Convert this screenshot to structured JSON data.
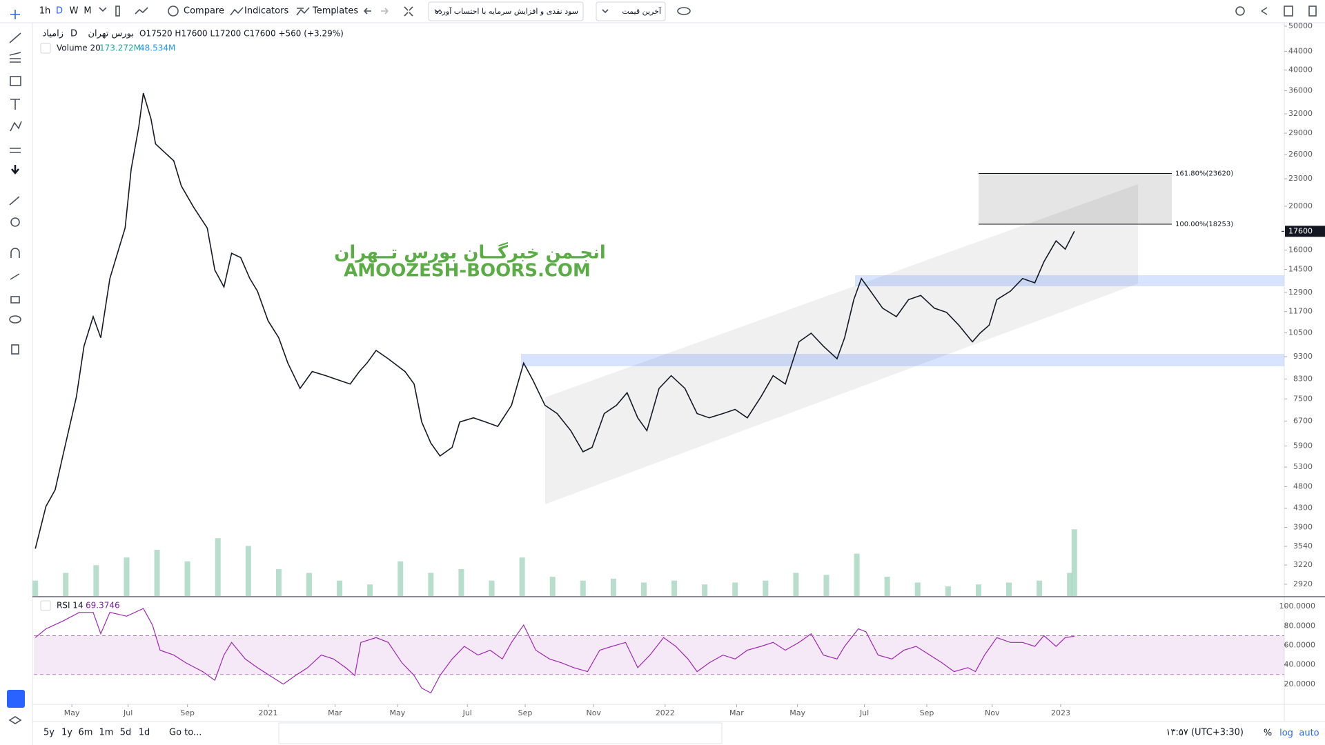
{
  "toolbar": {
    "intervals": [
      "1h",
      "D",
      "W",
      "M"
    ],
    "compare": "Compare",
    "indicators": "Indicators",
    "templates": "Templates",
    "adjustment": "سود نقدی و افزایش سرمایه با احتساب آورده",
    "price_source": "آخرین قیمت"
  },
  "legend": {
    "symbol": "زامیاد",
    "interval": "D",
    "exchange": "بورس تهران",
    "ohlc": "O17520 H17600 L17200 C17600 +560 (+3.29%)",
    "volume_name": "Volume 20",
    "volume_value": "173.272M",
    "volume_ma": "48.534M",
    "rsi_name": "RSI 14",
    "rsi_value": "69.3746"
  },
  "watermark": {
    "line1": "انجـمن خبرگــان بورس تــهران",
    "line2": "AMOOZESH-BOORS.COM"
  },
  "bottom": {
    "ranges": [
      "5y",
      "1y",
      "6m",
      "1m",
      "5d",
      "1d"
    ],
    "goto": "Go to...",
    "clock": "۱۳:۵۷ (UTC+3:30)",
    "percent": "%",
    "log": "log",
    "auto": "auto"
  },
  "chart_data": [
    {
      "type": "line",
      "color": "#131722",
      "log_scale": true,
      "grid": false,
      "xlim": [
        -1,
        821
      ],
      "ylim": [
        2750,
        50700
      ],
      "xticks": [
        {
          "value": 24,
          "label": "May"
        },
        {
          "value": 61,
          "label": "Jul"
        },
        {
          "value": 100,
          "label": "Sep"
        },
        {
          "value": 153,
          "label": "2021"
        },
        {
          "value": 197,
          "label": "Mar"
        },
        {
          "value": 238,
          "label": "May"
        },
        {
          "value": 284,
          "label": "Jul"
        },
        {
          "value": 322,
          "label": "Sep"
        },
        {
          "value": 367,
          "label": "Nov"
        },
        {
          "value": 414,
          "label": "2022"
        },
        {
          "value": 461,
          "label": "Mar"
        },
        {
          "value": 501,
          "label": "May"
        },
        {
          "value": 545,
          "label": "Jul"
        },
        {
          "value": 586,
          "label": "Sep"
        },
        {
          "value": 629,
          "label": "Nov"
        },
        {
          "value": 674,
          "label": "2023"
        }
      ],
      "yticks": [
        2920,
        3220,
        3540,
        3900,
        4300,
        4800,
        5300,
        5900,
        6700,
        7500,
        8300,
        9300,
        10500,
        11700,
        12900,
        14500,
        16000,
        20000,
        23000,
        26000,
        29000,
        32000,
        36000,
        40000,
        44000,
        50000
      ],
      "last_value": 17600,
      "fib_levels": [
        {
          "value": 23620,
          "label": "161.80%(23620)"
        },
        {
          "value": 18253,
          "label": "100.00%(18253)"
        }
      ],
      "x": [
        0,
        7,
        13,
        18,
        27,
        32,
        38,
        43,
        49,
        54,
        59,
        63,
        68,
        71,
        76,
        79,
        85,
        91,
        96,
        104,
        113,
        118,
        124,
        129,
        135,
        141,
        146,
        153,
        160,
        166,
        174,
        182,
        191,
        199,
        207,
        213,
        218,
        224,
        232,
        243,
        249,
        254,
        260,
        266,
        274,
        279,
        288,
        296,
        304,
        313,
        321,
        327,
        335,
        343,
        352,
        360,
        366,
        374,
        382,
        389,
        396,
        402,
        410,
        418,
        427,
        435,
        443,
        452,
        460,
        468,
        477,
        485,
        493,
        502,
        510,
        518,
        527,
        532,
        538,
        543,
        549,
        557,
        566,
        574,
        582,
        591,
        599,
        607,
        616,
        621,
        627,
        632,
        641,
        649,
        657,
        663,
        671,
        677,
        683
      ],
      "values": [
        3500,
        4340,
        4720,
        5600,
        7580,
        9810,
        11400,
        10240,
        13840,
        15740,
        17900,
        24160,
        29950,
        35560,
        31240,
        27460,
        26300,
        25200,
        22160,
        19900,
        17900,
        14450,
        13260,
        15740,
        15400,
        13840,
        12980,
        11160,
        10240,
        9000,
        7910,
        8620,
        8440,
        8260,
        8090,
        8620,
        9000,
        9600,
        9200,
        8620,
        8090,
        6670,
        5990,
        5610,
        5860,
        6670,
        6810,
        6670,
        6520,
        7260,
        9000,
        8260,
        7260,
        6960,
        6380,
        5730,
        5860,
        6960,
        7260,
        7740,
        6810,
        6380,
        7910,
        8440,
        7910,
        6960,
        6810,
        6960,
        7110,
        6810,
        7580,
        8440,
        8090,
        10030,
        10480,
        9810,
        9200,
        10240,
        12430,
        13840,
        12980,
        11900,
        11400,
        12430,
        12700,
        11900,
        11650,
        10920,
        10030,
        10480,
        10920,
        12430,
        12980,
        13840,
        13540,
        15070,
        16770,
        16070,
        17600
      ]
    },
    {
      "type": "bar",
      "color": "#a5d6c1",
      "x": [
        0,
        20,
        40,
        60,
        80,
        100,
        120,
        140,
        160,
        180,
        200,
        220,
        240,
        260,
        280,
        300,
        320,
        340,
        360,
        380,
        400,
        420,
        440,
        460,
        480,
        500,
        520,
        540,
        560,
        580,
        600,
        620,
        640,
        660,
        680,
        683
      ],
      "values": [
        40,
        60,
        80,
        100,
        120,
        90,
        150,
        130,
        70,
        60,
        40,
        30,
        90,
        60,
        70,
        40,
        100,
        50,
        40,
        45,
        35,
        40,
        30,
        35,
        40,
        60,
        55,
        110,
        50,
        35,
        25,
        30,
        35,
        40,
        60,
        173.272
      ]
    },
    {
      "type": "line",
      "color": "#9c27b0",
      "ylim": [
        0,
        108.7
      ],
      "bands": [
        30,
        70
      ],
      "yticks": [
        {
          "value": 20,
          "label": "20.0000"
        },
        {
          "value": 40,
          "label": "40.0000"
        },
        {
          "value": 60,
          "label": "60.0000"
        },
        {
          "value": 80,
          "label": "80.0000"
        },
        {
          "value": 100,
          "label": "100.0000"
        }
      ],
      "x": [
        0,
        7,
        18,
        29,
        38,
        43,
        49,
        60,
        71,
        77,
        82,
        91,
        99,
        110,
        118,
        124,
        129,
        138,
        146,
        154,
        163,
        171,
        179,
        188,
        196,
        204,
        210,
        214,
        224,
        232,
        241,
        249,
        254,
        260,
        266,
        274,
        282,
        291,
        299,
        307,
        313,
        321,
        329,
        338,
        346,
        354,
        363,
        371,
        379,
        388,
        396,
        404,
        413,
        421,
        429,
        435,
        443,
        452,
        460,
        468,
        477,
        485,
        493,
        502,
        510,
        518,
        527,
        532,
        541,
        546,
        554,
        563,
        571,
        579,
        588,
        596,
        604,
        613,
        618,
        624,
        632,
        641,
        649,
        657,
        663,
        671,
        677,
        683
      ],
      "values": [
        68,
        77,
        85,
        94,
        94,
        72,
        94,
        90,
        98,
        81,
        55,
        50,
        42,
        33,
        24,
        50,
        63,
        46,
        37,
        29,
        20,
        29,
        37,
        50,
        46,
        37,
        29,
        63,
        68,
        63,
        42,
        29,
        16,
        11,
        29,
        46,
        59,
        50,
        55,
        46,
        63,
        81,
        55,
        46,
        42,
        37,
        33,
        55,
        59,
        63,
        37,
        50,
        68,
        59,
        46,
        33,
        42,
        50,
        46,
        55,
        59,
        63,
        55,
        63,
        72,
        50,
        46,
        59,
        77,
        74,
        50,
        46,
        55,
        59,
        50,
        42,
        33,
        37,
        33,
        50,
        68,
        63,
        63,
        59,
        70,
        59,
        68,
        69.3746
      ]
    }
  ]
}
